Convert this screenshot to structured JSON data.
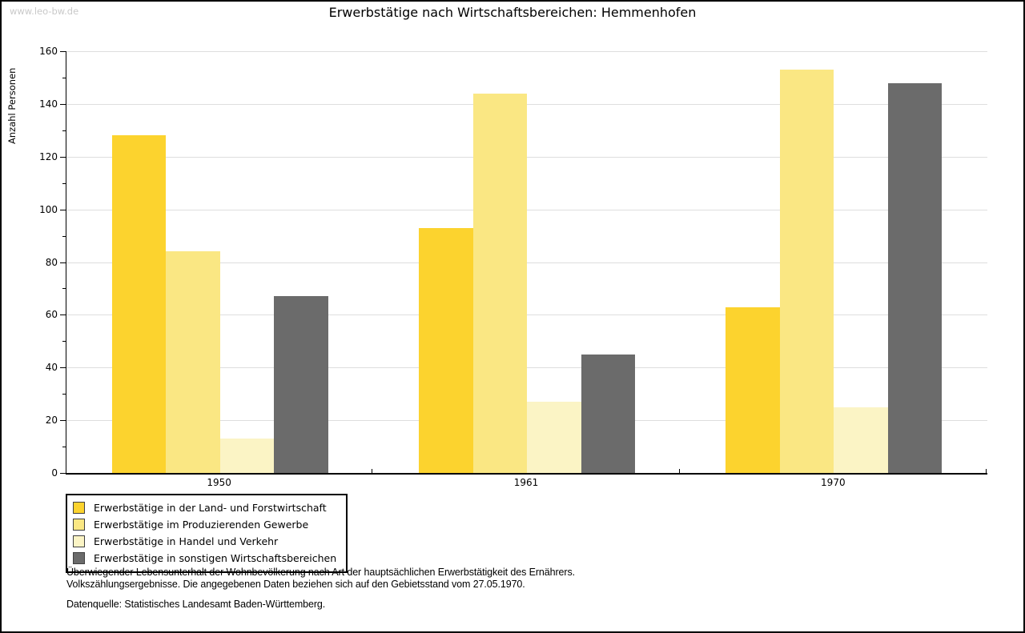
{
  "watermark": "www.leo-bw.de",
  "title": "Erwerbstätige nach Wirtschaftsbereichen: Hemmenhofen",
  "chart_data": {
    "type": "bar",
    "title": "Erwerbstätige nach Wirtschaftsbereichen: Hemmenhofen",
    "xlabel": "",
    "ylabel": "Anzahl Personen",
    "ylim": [
      0,
      160
    ],
    "ytick_step": 20,
    "y_minor_tick_step": 10,
    "grid": true,
    "legend_position": "bottom-left",
    "categories": [
      "1950",
      "1961",
      "1970"
    ],
    "series": [
      {
        "name": "Erwerbstätige in der Land- und Forstwirtschaft",
        "color": "#FCD32E",
        "values": [
          128,
          93,
          63
        ]
      },
      {
        "name": "Erwerbstätige im Produzierenden Gewerbe",
        "color": "#FAE783",
        "values": [
          84,
          144,
          153
        ]
      },
      {
        "name": "Erwerbstätige in Handel und Verkehr",
        "color": "#FBF4C5",
        "values": [
          13,
          27,
          25
        ]
      },
      {
        "name": "Erwerbstätige in sonstigen Wirtschaftsbereichen",
        "color": "#6B6B6B",
        "values": [
          67,
          45,
          148
        ]
      }
    ]
  },
  "footer": {
    "line1": "Überwiegender Lebensunterhalt der Wohnbevölkerung nach Art der hauptsächlichen Erwerbstätigkeit des Ernährers.",
    "line2": "Volkszählungsergebnisse. Die angegebenen Daten beziehen sich auf den Gebietsstand vom 27.05.1970.",
    "source": "Datenquelle: Statistisches Landesamt Baden-Württemberg."
  }
}
